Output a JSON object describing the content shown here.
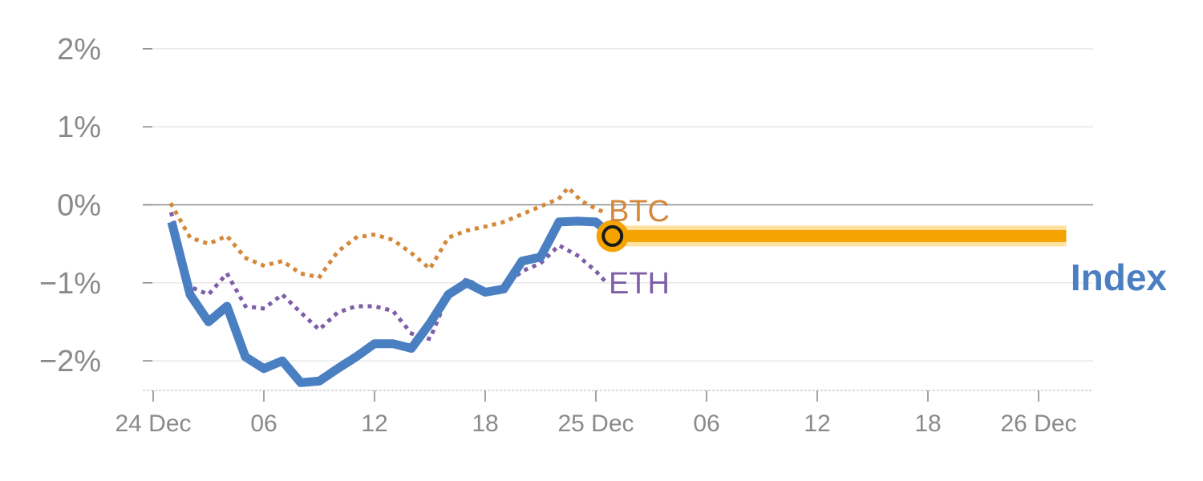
{
  "chart_data": {
    "type": "line",
    "title": "",
    "xlabel": "",
    "ylabel": "",
    "ylim": [
      -2.4,
      2.0
    ],
    "y_ticks": [
      {
        "value": 2,
        "label": "2%"
      },
      {
        "value": 1,
        "label": "1%"
      },
      {
        "value": 0,
        "label": "0%"
      },
      {
        "value": -1,
        "label": "−1%"
      },
      {
        "value": -2,
        "label": "−2%"
      }
    ],
    "x_ticks": [
      {
        "t": 0,
        "label": "24 Dec"
      },
      {
        "t": 6,
        "label": "06"
      },
      {
        "t": 12,
        "label": "12"
      },
      {
        "t": 18,
        "label": "18"
      },
      {
        "t": 24,
        "label": "25 Dec"
      },
      {
        "t": 30,
        "label": "06"
      },
      {
        "t": 36,
        "label": "12"
      },
      {
        "t": 42,
        "label": "18"
      },
      {
        "t": 48,
        "label": "26 Dec"
      }
    ],
    "grid": true,
    "series": [
      {
        "name": "Index",
        "color": "#4a7fc1",
        "style": "solid",
        "points": [
          [
            1,
            -0.22
          ],
          [
            2,
            -1.15
          ],
          [
            3,
            -1.5
          ],
          [
            4,
            -1.3
          ],
          [
            5,
            -1.95
          ],
          [
            6,
            -2.1
          ],
          [
            7,
            -2.0
          ],
          [
            8,
            -2.28
          ],
          [
            9,
            -2.26
          ],
          [
            10,
            -2.1
          ],
          [
            11,
            -1.95
          ],
          [
            12,
            -1.78
          ],
          [
            13,
            -1.78
          ],
          [
            14,
            -1.84
          ],
          [
            15,
            -1.52
          ],
          [
            16,
            -1.15
          ],
          [
            17,
            -1.0
          ],
          [
            18,
            -1.12
          ],
          [
            19,
            -1.08
          ],
          [
            20,
            -0.72
          ],
          [
            21,
            -0.67
          ],
          [
            22,
            -0.22
          ],
          [
            23,
            -0.21
          ],
          [
            24,
            -0.22
          ],
          [
            24.9,
            -0.4
          ]
        ]
      },
      {
        "name": "BTC",
        "color": "#d4883a",
        "style": "dotted",
        "points": [
          [
            1,
            0.0
          ],
          [
            2,
            -0.42
          ],
          [
            3,
            -0.5
          ],
          [
            4,
            -0.4
          ],
          [
            5,
            -0.68
          ],
          [
            6,
            -0.78
          ],
          [
            7,
            -0.72
          ],
          [
            8,
            -0.88
          ],
          [
            9,
            -0.93
          ],
          [
            10,
            -0.6
          ],
          [
            11,
            -0.42
          ],
          [
            12,
            -0.38
          ],
          [
            13,
            -0.45
          ],
          [
            14,
            -0.62
          ],
          [
            15,
            -0.82
          ],
          [
            16,
            -0.42
          ],
          [
            17,
            -0.33
          ],
          [
            18,
            -0.28
          ],
          [
            19,
            -0.22
          ],
          [
            20,
            -0.12
          ],
          [
            21,
            -0.02
          ],
          [
            22,
            0.08
          ],
          [
            22.5,
            0.22
          ],
          [
            23.2,
            0.05
          ],
          [
            24,
            -0.05
          ],
          [
            24.5,
            -0.1
          ]
        ]
      },
      {
        "name": "ETH",
        "color": "#7e5ea8",
        "style": "dotted",
        "points": [
          [
            1,
            -0.12
          ],
          [
            2,
            -1.05
          ],
          [
            3,
            -1.15
          ],
          [
            4,
            -0.88
          ],
          [
            5,
            -1.3
          ],
          [
            6,
            -1.33
          ],
          [
            7,
            -1.15
          ],
          [
            8,
            -1.38
          ],
          [
            9,
            -1.6
          ],
          [
            10,
            -1.38
          ],
          [
            11,
            -1.3
          ],
          [
            12,
            -1.3
          ],
          [
            13,
            -1.36
          ],
          [
            14,
            -1.65
          ],
          [
            15,
            -1.72
          ],
          [
            16,
            -1.15
          ],
          [
            17,
            -0.95
          ],
          [
            18,
            -1.1
          ],
          [
            19,
            -1.05
          ],
          [
            20,
            -0.85
          ],
          [
            21,
            -0.75
          ],
          [
            22,
            -0.52
          ],
          [
            23,
            -0.65
          ],
          [
            24,
            -0.85
          ],
          [
            24.5,
            -0.98
          ]
        ]
      }
    ],
    "projection": {
      "color": "#f5a300",
      "value": -0.4,
      "t_start": 24.9,
      "t_end": 49.5
    },
    "current_marker": {
      "t": 24.9,
      "value": -0.4
    },
    "labels": {
      "btc": "BTC",
      "eth": "ETH",
      "index": "Index"
    }
  }
}
